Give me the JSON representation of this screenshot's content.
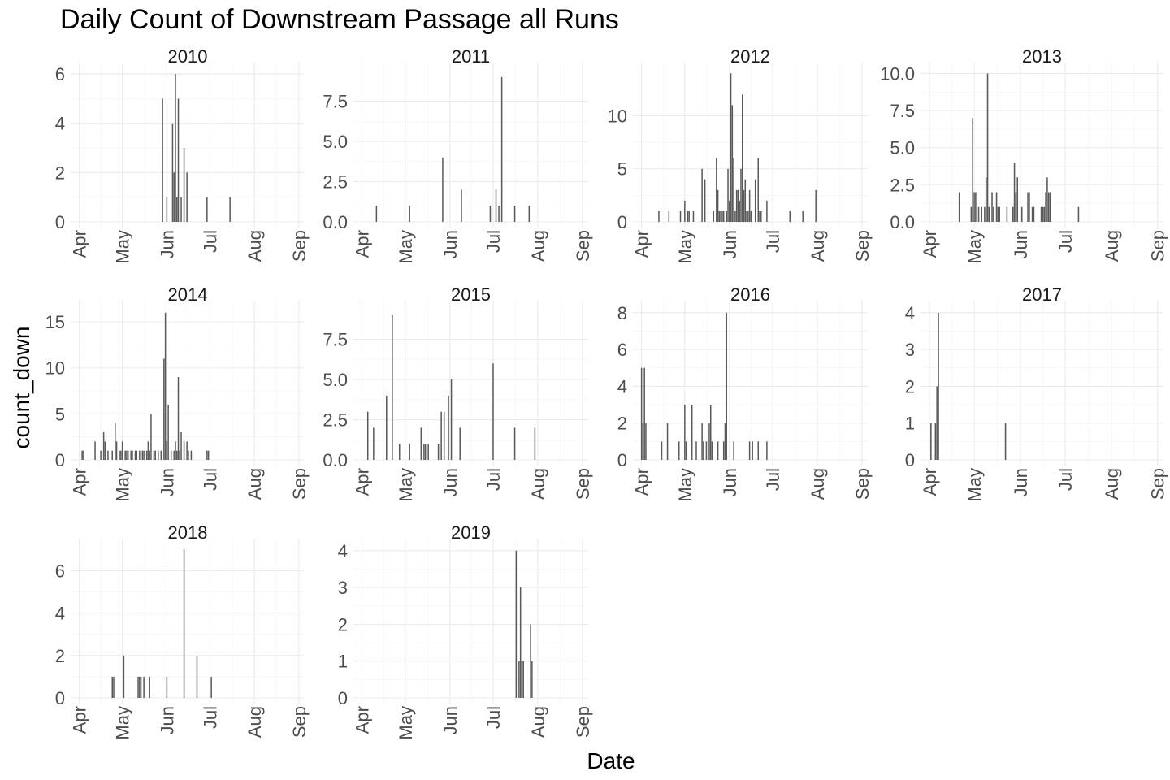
{
  "chart_data": {
    "type": "bar",
    "title": "Daily Count of Downstream Passage all Runs",
    "xlabel": "Date",
    "ylabel": "count_down",
    "x_tick_labels": [
      "Apr",
      "May",
      "Jun",
      "Jul",
      "Aug",
      "Sep"
    ],
    "x_tick_days": [
      91,
      121,
      152,
      182,
      213,
      244
    ],
    "xlim_day_of_year": [
      85,
      248
    ],
    "grid": true,
    "bar_color": "#595959",
    "panels": [
      {
        "name": "2010",
        "ylim": [
          0,
          6.2
        ],
        "yticks": [
          0,
          2,
          4,
          6
        ],
        "ytick_labels": [
          "0",
          "2",
          "4",
          "6"
        ],
        "bars": [
          {
            "day": 149,
            "count": 5
          },
          {
            "day": 152,
            "count": 1
          },
          {
            "day": 156,
            "count": 4
          },
          {
            "day": 157,
            "count": 2
          },
          {
            "day": 158,
            "count": 6
          },
          {
            "day": 159,
            "count": 1
          },
          {
            "day": 160,
            "count": 5
          },
          {
            "day": 162,
            "count": 1
          },
          {
            "day": 164,
            "count": 3
          },
          {
            "day": 166,
            "count": 2
          },
          {
            "day": 180,
            "count": 1
          },
          {
            "day": 196,
            "count": 1
          }
        ]
      },
      {
        "name": "2011",
        "ylim": [
          0,
          9.5
        ],
        "yticks": [
          0,
          2.5,
          5,
          7.5
        ],
        "ytick_labels": [
          "0.0",
          "2.5",
          "5.0",
          "7.5"
        ],
        "bars": [
          {
            "day": 101,
            "count": 1
          },
          {
            "day": 124,
            "count": 1
          },
          {
            "day": 147,
            "count": 4
          },
          {
            "day": 160,
            "count": 2
          },
          {
            "day": 180,
            "count": 1
          },
          {
            "day": 184,
            "count": 2
          },
          {
            "day": 186,
            "count": 1
          },
          {
            "day": 188,
            "count": 9
          },
          {
            "day": 197,
            "count": 1
          },
          {
            "day": 207,
            "count": 1
          }
        ]
      },
      {
        "name": "2012",
        "ylim": [
          0,
          14.4
        ],
        "yticks": [
          0,
          5,
          10
        ],
        "ytick_labels": [
          "0",
          "5",
          "10"
        ],
        "bars": [
          {
            "day": 103,
            "count": 1
          },
          {
            "day": 110,
            "count": 1
          },
          {
            "day": 118,
            "count": 1
          },
          {
            "day": 121,
            "count": 2
          },
          {
            "day": 123,
            "count": 1
          },
          {
            "day": 124,
            "count": 1
          },
          {
            "day": 127,
            "count": 1
          },
          {
            "day": 133,
            "count": 5
          },
          {
            "day": 135,
            "count": 4
          },
          {
            "day": 141,
            "count": 1
          },
          {
            "day": 143,
            "count": 6
          },
          {
            "day": 144,
            "count": 3
          },
          {
            "day": 145,
            "count": 1
          },
          {
            "day": 146,
            "count": 1
          },
          {
            "day": 147,
            "count": 1
          },
          {
            "day": 148,
            "count": 1
          },
          {
            "day": 150,
            "count": 1
          },
          {
            "day": 151,
            "count": 5
          },
          {
            "day": 152,
            "count": 2
          },
          {
            "day": 153,
            "count": 14
          },
          {
            "day": 154,
            "count": 11
          },
          {
            "day": 155,
            "count": 6
          },
          {
            "day": 156,
            "count": 1
          },
          {
            "day": 157,
            "count": 3
          },
          {
            "day": 158,
            "count": 3
          },
          {
            "day": 159,
            "count": 2
          },
          {
            "day": 160,
            "count": 5
          },
          {
            "day": 161,
            "count": 12
          },
          {
            "day": 162,
            "count": 3
          },
          {
            "day": 163,
            "count": 4
          },
          {
            "day": 164,
            "count": 1
          },
          {
            "day": 165,
            "count": 1
          },
          {
            "day": 166,
            "count": 3
          },
          {
            "day": 167,
            "count": 1
          },
          {
            "day": 170,
            "count": 4
          },
          {
            "day": 172,
            "count": 6
          },
          {
            "day": 173,
            "count": 1
          },
          {
            "day": 174,
            "count": 1
          },
          {
            "day": 178,
            "count": 2
          },
          {
            "day": 194,
            "count": 1
          },
          {
            "day": 203,
            "count": 1
          },
          {
            "day": 212,
            "count": 3
          }
        ]
      },
      {
        "name": "2013",
        "ylim": [
          0,
          10.3
        ],
        "yticks": [
          0,
          2.5,
          5,
          7.5,
          10
        ],
        "ytick_labels": [
          "0.0",
          "2.5",
          "5.0",
          "7.5",
          "10.0"
        ],
        "bars": [
          {
            "day": 111,
            "count": 2
          },
          {
            "day": 119,
            "count": 1
          },
          {
            "day": 120,
            "count": 7
          },
          {
            "day": 121,
            "count": 2
          },
          {
            "day": 122,
            "count": 2
          },
          {
            "day": 124,
            "count": 1
          },
          {
            "day": 126,
            "count": 1
          },
          {
            "day": 128,
            "count": 1
          },
          {
            "day": 129,
            "count": 3
          },
          {
            "day": 130,
            "count": 10
          },
          {
            "day": 131,
            "count": 1
          },
          {
            "day": 133,
            "count": 2
          },
          {
            "day": 134,
            "count": 1
          },
          {
            "day": 136,
            "count": 2
          },
          {
            "day": 137,
            "count": 1
          },
          {
            "day": 138,
            "count": 1
          },
          {
            "day": 143,
            "count": 1
          },
          {
            "day": 147,
            "count": 1
          },
          {
            "day": 148,
            "count": 4
          },
          {
            "day": 149,
            "count": 2
          },
          {
            "day": 150,
            "count": 3
          },
          {
            "day": 153,
            "count": 1
          },
          {
            "day": 157,
            "count": 2
          },
          {
            "day": 158,
            "count": 2
          },
          {
            "day": 160,
            "count": 1
          },
          {
            "day": 161,
            "count": 1
          },
          {
            "day": 166,
            "count": 1
          },
          {
            "day": 167,
            "count": 1
          },
          {
            "day": 168,
            "count": 1
          },
          {
            "day": 169,
            "count": 2
          },
          {
            "day": 170,
            "count": 3
          },
          {
            "day": 171,
            "count": 2
          },
          {
            "day": 172,
            "count": 2
          },
          {
            "day": 191,
            "count": 1
          }
        ]
      },
      {
        "name": "2014",
        "ylim": [
          0,
          16.6
        ],
        "yticks": [
          0,
          5,
          10,
          15
        ],
        "ytick_labels": [
          "0",
          "5",
          "10",
          "15"
        ],
        "bars": [
          {
            "day": 93,
            "count": 1
          },
          {
            "day": 94,
            "count": 1
          },
          {
            "day": 102,
            "count": 2
          },
          {
            "day": 106,
            "count": 1
          },
          {
            "day": 108,
            "count": 3
          },
          {
            "day": 109,
            "count": 2
          },
          {
            "day": 111,
            "count": 1
          },
          {
            "day": 114,
            "count": 1
          },
          {
            "day": 116,
            "count": 4
          },
          {
            "day": 117,
            "count": 2
          },
          {
            "day": 119,
            "count": 1
          },
          {
            "day": 120,
            "count": 1
          },
          {
            "day": 121,
            "count": 2
          },
          {
            "day": 123,
            "count": 1
          },
          {
            "day": 124,
            "count": 1
          },
          {
            "day": 125,
            "count": 1
          },
          {
            "day": 127,
            "count": 1
          },
          {
            "day": 128,
            "count": 1
          },
          {
            "day": 130,
            "count": 1
          },
          {
            "day": 131,
            "count": 1
          },
          {
            "day": 133,
            "count": 1
          },
          {
            "day": 135,
            "count": 1
          },
          {
            "day": 136,
            "count": 1
          },
          {
            "day": 138,
            "count": 1
          },
          {
            "day": 139,
            "count": 2
          },
          {
            "day": 140,
            "count": 1
          },
          {
            "day": 141,
            "count": 5
          },
          {
            "day": 143,
            "count": 1
          },
          {
            "day": 144,
            "count": 1
          },
          {
            "day": 146,
            "count": 1
          },
          {
            "day": 148,
            "count": 1
          },
          {
            "day": 150,
            "count": 11
          },
          {
            "day": 151,
            "count": 16
          },
          {
            "day": 152,
            "count": 2
          },
          {
            "day": 153,
            "count": 6
          },
          {
            "day": 155,
            "count": 1
          },
          {
            "day": 157,
            "count": 1
          },
          {
            "day": 158,
            "count": 2
          },
          {
            "day": 159,
            "count": 1
          },
          {
            "day": 160,
            "count": 9
          },
          {
            "day": 161,
            "count": 1
          },
          {
            "day": 162,
            "count": 3
          },
          {
            "day": 164,
            "count": 2
          },
          {
            "day": 166,
            "count": 2
          },
          {
            "day": 167,
            "count": 1
          },
          {
            "day": 169,
            "count": 1
          },
          {
            "day": 180,
            "count": 1
          },
          {
            "day": 181,
            "count": 1
          }
        ]
      },
      {
        "name": "2015",
        "ylim": [
          0,
          9.5
        ],
        "yticks": [
          0,
          2.5,
          5,
          7.5
        ],
        "ytick_labels": [
          "0.0",
          "2.5",
          "5.0",
          "7.5"
        ],
        "bars": [
          {
            "day": 95,
            "count": 3
          },
          {
            "day": 99,
            "count": 2
          },
          {
            "day": 108,
            "count": 4
          },
          {
            "day": 112,
            "count": 9
          },
          {
            "day": 117,
            "count": 1
          },
          {
            "day": 124,
            "count": 1
          },
          {
            "day": 132,
            "count": 2
          },
          {
            "day": 134,
            "count": 1
          },
          {
            "day": 135,
            "count": 1
          },
          {
            "day": 137,
            "count": 1
          },
          {
            "day": 144,
            "count": 1
          },
          {
            "day": 146,
            "count": 3
          },
          {
            "day": 148,
            "count": 3
          },
          {
            "day": 151,
            "count": 4
          },
          {
            "day": 153,
            "count": 5
          },
          {
            "day": 159,
            "count": 2
          },
          {
            "day": 182,
            "count": 6
          },
          {
            "day": 197,
            "count": 2
          },
          {
            "day": 211,
            "count": 2
          }
        ]
      },
      {
        "name": "2016",
        "ylim": [
          0,
          8.3
        ],
        "yticks": [
          0,
          2,
          4,
          6,
          8
        ],
        "ytick_labels": [
          "0",
          "2",
          "4",
          "6",
          "8"
        ],
        "bars": [
          {
            "day": 91,
            "count": 5
          },
          {
            "day": 92,
            "count": 2
          },
          {
            "day": 93,
            "count": 5
          },
          {
            "day": 94,
            "count": 2
          },
          {
            "day": 105,
            "count": 1
          },
          {
            "day": 109,
            "count": 2
          },
          {
            "day": 117,
            "count": 1
          },
          {
            "day": 121,
            "count": 3
          },
          {
            "day": 122,
            "count": 1
          },
          {
            "day": 126,
            "count": 3
          },
          {
            "day": 129,
            "count": 1
          },
          {
            "day": 133,
            "count": 2
          },
          {
            "day": 134,
            "count": 1
          },
          {
            "day": 136,
            "count": 1
          },
          {
            "day": 138,
            "count": 2
          },
          {
            "day": 139,
            "count": 3
          },
          {
            "day": 140,
            "count": 1
          },
          {
            "day": 144,
            "count": 1
          },
          {
            "day": 148,
            "count": 1
          },
          {
            "day": 149,
            "count": 2
          },
          {
            "day": 150,
            "count": 8
          },
          {
            "day": 155,
            "count": 1
          },
          {
            "day": 166,
            "count": 1
          },
          {
            "day": 168,
            "count": 1
          },
          {
            "day": 172,
            "count": 1
          },
          {
            "day": 178,
            "count": 1
          }
        ]
      },
      {
        "name": "2017",
        "ylim": [
          0,
          4.15
        ],
        "yticks": [
          0,
          1,
          2,
          3,
          4
        ],
        "ytick_labels": [
          "0",
          "1",
          "2",
          "3",
          "4"
        ],
        "bars": [
          {
            "day": 92,
            "count": 1
          },
          {
            "day": 95,
            "count": 1
          },
          {
            "day": 96,
            "count": 2
          },
          {
            "day": 97,
            "count": 4
          },
          {
            "day": 142,
            "count": 1
          }
        ]
      },
      {
        "name": "2018",
        "ylim": [
          0,
          7.2
        ],
        "yticks": [
          0,
          2,
          4,
          6
        ],
        "ytick_labels": [
          "0",
          "2",
          "4",
          "6"
        ],
        "bars": [
          {
            "day": 114,
            "count": 1
          },
          {
            "day": 115,
            "count": 1
          },
          {
            "day": 122,
            "count": 2
          },
          {
            "day": 132,
            "count": 1
          },
          {
            "day": 133,
            "count": 1
          },
          {
            "day": 134,
            "count": 1
          },
          {
            "day": 136,
            "count": 1
          },
          {
            "day": 140,
            "count": 1
          },
          {
            "day": 152,
            "count": 1
          },
          {
            "day": 164,
            "count": 7
          },
          {
            "day": 173,
            "count": 2
          },
          {
            "day": 183,
            "count": 1
          }
        ]
      },
      {
        "name": "2019",
        "ylim": [
          0,
          4.15
        ],
        "yticks": [
          0,
          1,
          2,
          3,
          4
        ],
        "ytick_labels": [
          "0",
          "1",
          "2",
          "3",
          "4"
        ],
        "bars": [
          {
            "day": 198,
            "count": 4
          },
          {
            "day": 200,
            "count": 1
          },
          {
            "day": 201,
            "count": 3
          },
          {
            "day": 202,
            "count": 1
          },
          {
            "day": 203,
            "count": 1
          },
          {
            "day": 208,
            "count": 2
          },
          {
            "day": 209,
            "count": 1
          }
        ]
      }
    ]
  }
}
